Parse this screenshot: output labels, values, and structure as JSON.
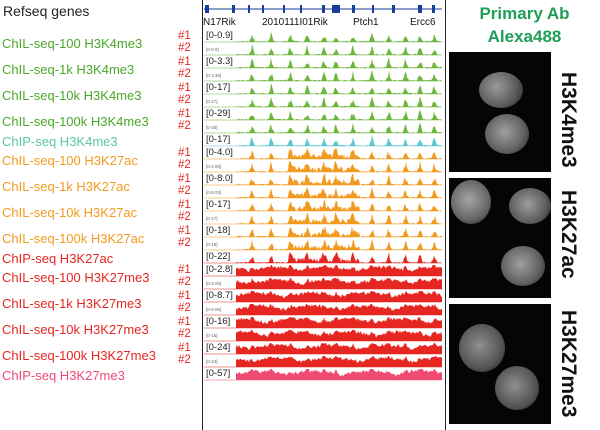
{
  "refseq_label": "Refseq genes",
  "genes": [
    "N17Rik",
    "2010111I01Rik",
    "Ptch1",
    "Ercc6"
  ],
  "header": {
    "line1": "Primary Ab",
    "line2": "Alexa488"
  },
  "colors": {
    "green": "#6cb63c",
    "chip_light": "#5bc7d2",
    "orange": "#f29a1f",
    "red": "#e52621",
    "chip_red": "#ef4a72",
    "header": "#1e9e58"
  },
  "rows": [
    {
      "label": "ChIL-seq-100 H3K4me3",
      "group": "green",
      "reps": [
        "#1",
        "#2"
      ],
      "ranges": [
        "[0-0.9]",
        "[0-0.9]"
      ]
    },
    {
      "label": "ChIL-seq-1k H3K4me3",
      "group": "green",
      "reps": [
        "#1",
        "#2"
      ],
      "ranges": [
        "[0-3.3]",
        "[0-3.30]"
      ]
    },
    {
      "label": "ChIL-seq-10k H3K4me3",
      "group": "green",
      "reps": [
        "#1",
        "#2"
      ],
      "ranges": [
        "[0-17]",
        "[0-17]"
      ]
    },
    {
      "label": "ChIL-seq-100k H3K4me3",
      "group": "green",
      "reps": [
        "#1",
        "#2"
      ],
      "ranges": [
        "[0-29]",
        "[0-30]"
      ]
    },
    {
      "label": "ChIP-seq H3K4me3",
      "group": "chip_light",
      "reps": [],
      "ranges": [
        "[0-17]"
      ]
    },
    {
      "label": "ChIL-seq-100 H3K27ac",
      "group": "orange",
      "reps": [
        "#1",
        "#2"
      ],
      "ranges": [
        "[0-4.0]",
        "[0-4.00]"
      ]
    },
    {
      "label": "ChIL-seq-1k H3K27ac",
      "group": "orange",
      "reps": [
        "#1",
        "#2"
      ],
      "ranges": [
        "[0-8.0]",
        "[0-8.00]"
      ]
    },
    {
      "label": "ChIL-seq-10k H3K27ac",
      "group": "orange",
      "reps": [
        "#1",
        "#2"
      ],
      "ranges": [
        "[0-17]",
        "[0-17]"
      ]
    },
    {
      "label": "ChIL-seq-100k H3K27ac",
      "group": "orange",
      "reps": [
        "#1",
        "#2"
      ],
      "ranges": [
        "[0-18]",
        "[0-18]"
      ]
    },
    {
      "label": "ChIP-seq H3K27ac",
      "group": "orange_dark",
      "reps": [],
      "ranges": [
        "[0-22]"
      ]
    },
    {
      "label": "ChIL-seq-100 H3K27me3",
      "group": "red",
      "reps": [
        "#1",
        "#2"
      ],
      "ranges": [
        "[0-2.8]",
        "[0-3.00]"
      ]
    },
    {
      "label": "ChIL-seq-1k H3K27me3",
      "group": "red",
      "reps": [
        "#1",
        "#2"
      ],
      "ranges": [
        "[0-8.7]",
        "[0-9.00]"
      ]
    },
    {
      "label": "ChIL-seq-10k H3K27me3",
      "group": "red",
      "reps": [
        "#1",
        "#2"
      ],
      "ranges": [
        "[0-16]",
        "[0-16]"
      ]
    },
    {
      "label": "ChIL-seq-100k H3K27me3",
      "group": "red",
      "reps": [
        "#1",
        "#2"
      ],
      "ranges": [
        "[0-24]",
        "[0-24]"
      ]
    },
    {
      "label": "ChIP-seq H3K27me3",
      "group": "chip_red",
      "reps": [],
      "ranges": [
        "[0-57]"
      ]
    }
  ],
  "marks": [
    "H3K4me3",
    "H3K27ac",
    "H3K27me3"
  ]
}
